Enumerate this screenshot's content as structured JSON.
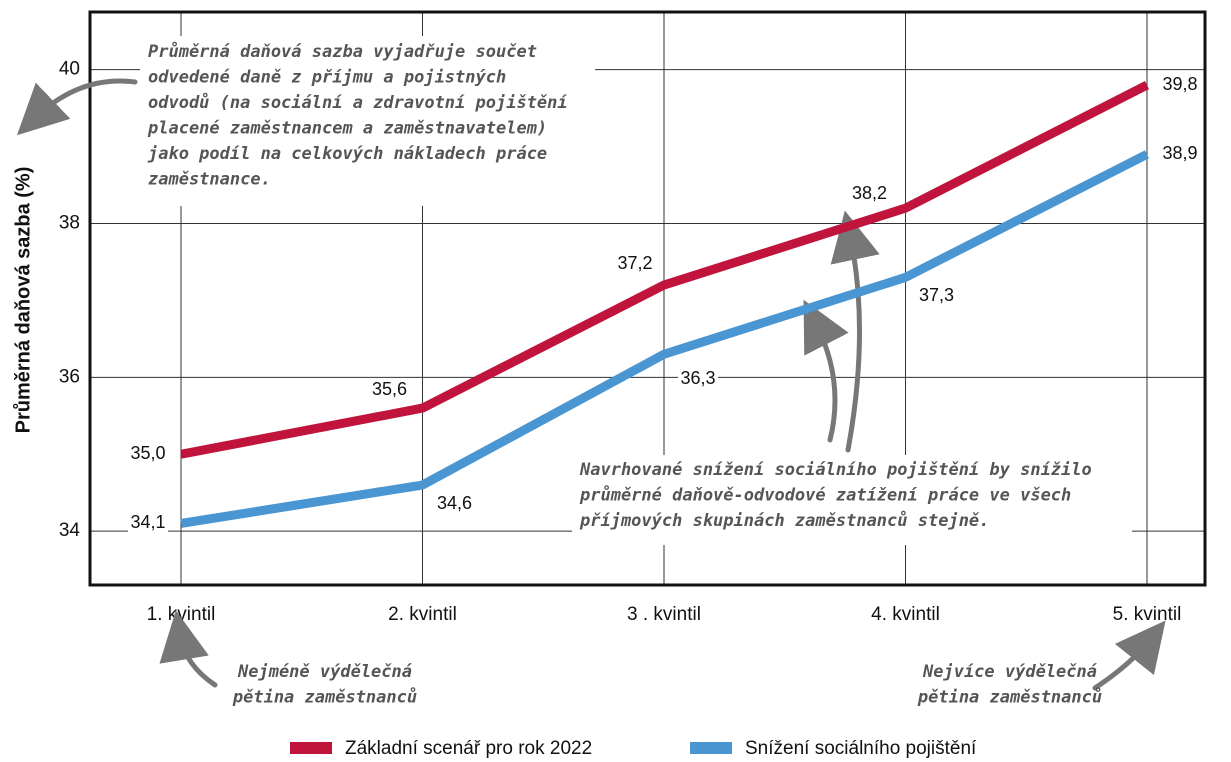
{
  "chart_data": {
    "type": "line",
    "ylabel": "Průměrná daňová sazba (%)",
    "categories": [
      "1. kvintil",
      "2. kvintil",
      "3 . kvintil",
      "4. kvintil",
      "5. kvintil"
    ],
    "series": [
      {
        "name": "Základní scenář pro rok 2022",
        "color": "#c0143c",
        "values": [
          35.0,
          35.6,
          37.2,
          38.2,
          39.8
        ],
        "value_labels": [
          "35,0",
          "35,6",
          "37,2",
          "38,2",
          "39,8"
        ]
      },
      {
        "name": "Snížení sociálního pojištění",
        "color": "#4a96d2",
        "values": [
          34.1,
          34.6,
          36.3,
          37.3,
          38.9
        ],
        "value_labels": [
          "34,1",
          "34,6",
          "36,3",
          "37,3",
          "38,9"
        ]
      }
    ],
    "ylim": [
      33.3,
      40.75
    ],
    "yticks": [
      34,
      36,
      38,
      40
    ],
    "grid": true,
    "annotations": [
      {
        "lines": [
          "Průměrná daňová sazba vyjadřuje součet",
          "odvedené daně z příjmu a pojistných",
          "odvodů (na sociální a zdravotní pojištění",
          "placené zaměstnancem a zaměstnavatelem)",
          "jako podíl na celkových nákladech práce",
          "zaměstnance."
        ]
      },
      {
        "lines": [
          "Navrhované snížení sociálního pojištění by snížilo",
          "průměrné daňově-odvodové zatížení práce ve všech",
          "příjmových skupinách zaměstnanců stejně."
        ]
      },
      {
        "lines": [
          "Nejméně výdělečná",
          "pětina zaměstnanců"
        ]
      },
      {
        "lines": [
          "Nejvíce výdělečná",
          "pětina zaměstnanců"
        ]
      }
    ]
  }
}
